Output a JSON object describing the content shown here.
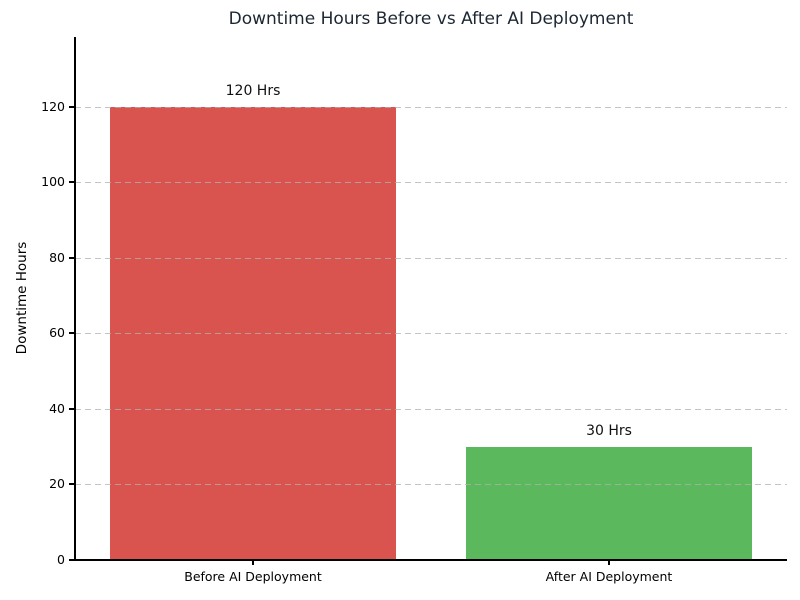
{
  "chart_data": {
    "type": "bar",
    "title": "Downtime Hours Before vs After AI Deployment",
    "xlabel": "",
    "ylabel": "Downtime Hours",
    "categories": [
      "Before AI Deployment",
      "After AI Deployment"
    ],
    "values": [
      120,
      30
    ],
    "bar_labels": [
      "120 Hrs",
      "30 Hrs"
    ],
    "bar_colors": [
      "#d9534f",
      "#5cb85c"
    ],
    "yticks": [
      0,
      20,
      40,
      60,
      80,
      100,
      120
    ],
    "ylim": [
      0,
      138.5
    ],
    "grid": {
      "axis": "y",
      "style": "dashed",
      "color": "#b0b0b0",
      "above_bars": true
    },
    "legend": "none",
    "title_color": "#1c2733",
    "axis_color": "#000000",
    "background": "#ffffff"
  }
}
